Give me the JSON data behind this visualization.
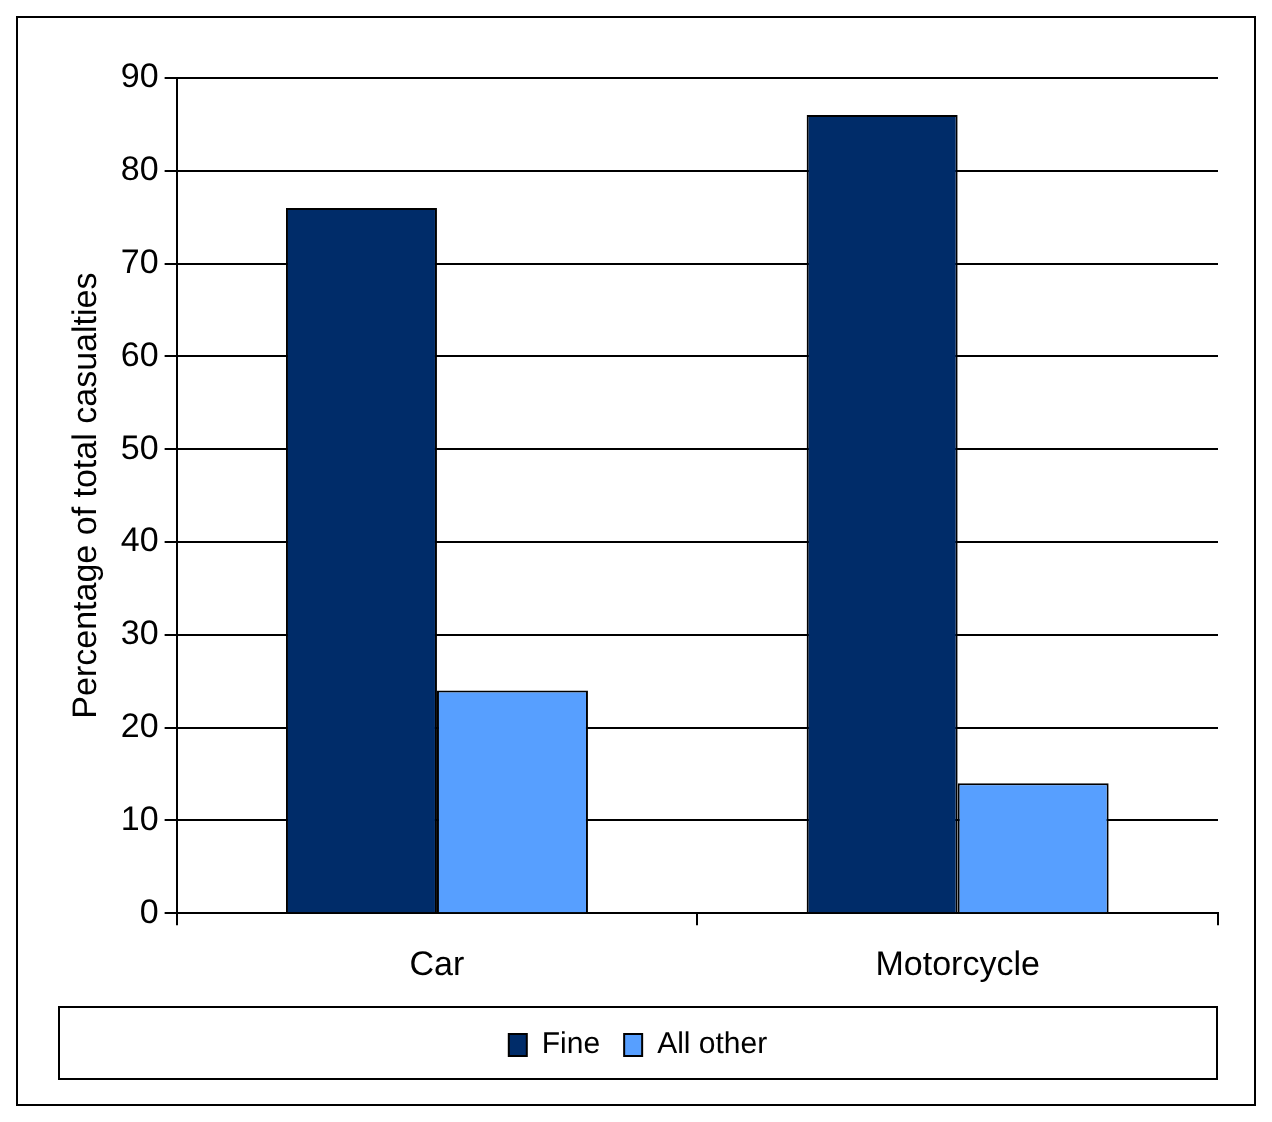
{
  "chart_data": {
    "type": "bar",
    "ylabel": "Percentage of total casualties",
    "categories": [
      "Car",
      "Motorcycle"
    ],
    "series": [
      {
        "name": "Fine",
        "color": "#002c69",
        "values": [
          76,
          86
        ]
      },
      {
        "name": "All other",
        "color": "#579fff",
        "values": [
          24,
          14
        ]
      }
    ],
    "ylim": [
      0,
      90
    ],
    "yticks": [
      0,
      10,
      20,
      30,
      40,
      50,
      60,
      70,
      80,
      90
    ],
    "grid": "y",
    "legend": "bottom"
  }
}
